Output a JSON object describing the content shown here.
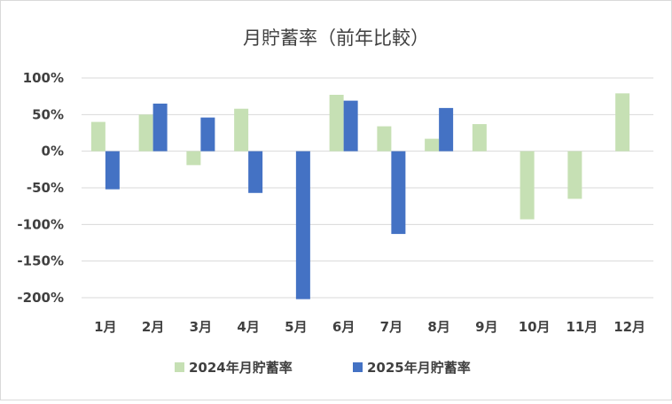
{
  "chart_data": {
    "type": "bar",
    "title": "月貯蓄率（前年比較）",
    "categories": [
      "1月",
      "2月",
      "3月",
      "4月",
      "5月",
      "6月",
      "7月",
      "8月",
      "9月",
      "10月",
      "11月",
      "12月"
    ],
    "series": [
      {
        "name": "2024年月貯蓄率",
        "color": "#c6e0b4",
        "values": [
          40,
          50,
          -19,
          58,
          0,
          77,
          34,
          17,
          37,
          -93,
          -65,
          79
        ]
      },
      {
        "name": "2025年月貯蓄率",
        "color": "#4472c4",
        "values": [
          -52,
          65,
          46,
          -57,
          -202,
          69,
          -113,
          59,
          null,
          null,
          null,
          null
        ]
      }
    ],
    "yticks": [
      "100%",
      "50%",
      "0%",
      "-50%",
      "-100%",
      "-150%",
      "-200%"
    ],
    "ylim": [
      -200,
      100
    ],
    "ytick_values": [
      100,
      50,
      0,
      -50,
      -100,
      -150,
      -200
    ],
    "grid": true,
    "legend": "bottom"
  }
}
